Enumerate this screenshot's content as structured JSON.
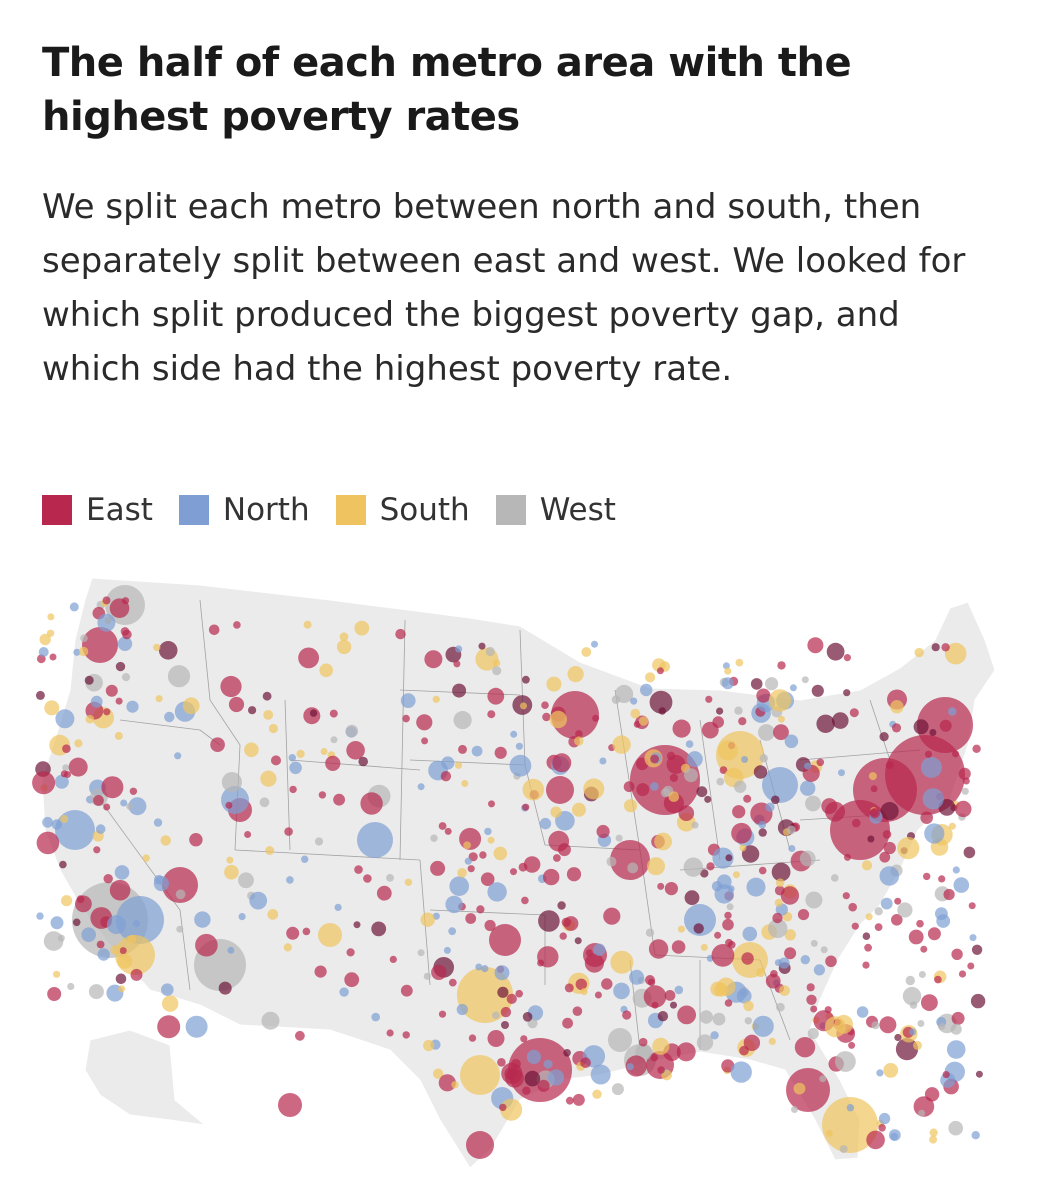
{
  "title": "The half of each metro area with the highest poverty rates",
  "subtitle": "We split each metro between north and south, then separately split between east and west. We looked for which split produced the biggest poverty gap, and which side had the highest poverty rate.",
  "legend": [
    {
      "label": "East",
      "color": "#b8284e"
    },
    {
      "label": "North",
      "color": "#7f9fd4"
    },
    {
      "label": "South",
      "color": "#efc460"
    },
    {
      "label": "West",
      "color": "#b7b7b7"
    }
  ],
  "map": {
    "land_color": "#ebebeb",
    "border_color": "#8a8a8a",
    "darker_east_color": "#6e1437"
  }
}
